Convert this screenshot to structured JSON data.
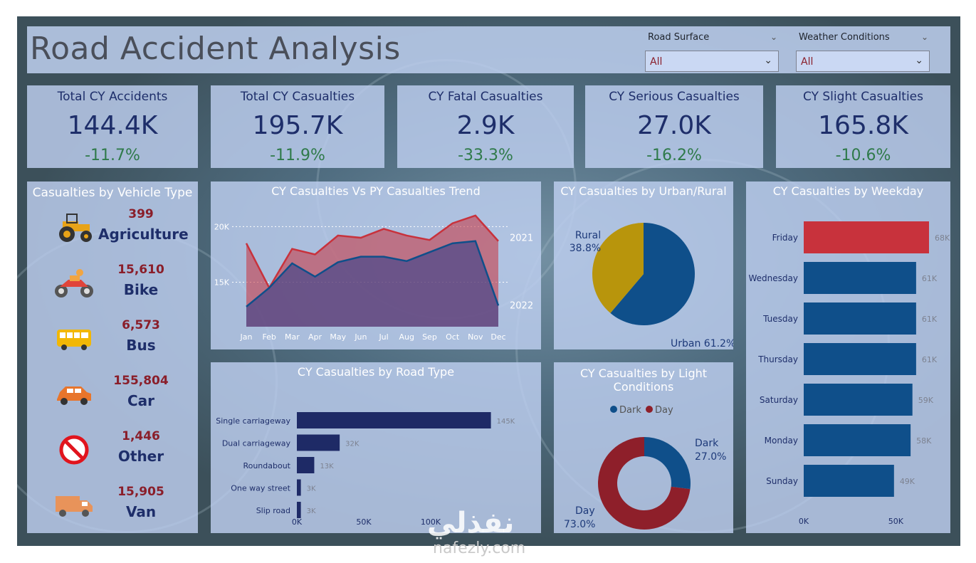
{
  "title": "Road Accident Analysis",
  "filters": [
    {
      "label": "Road Surface",
      "value": "All"
    },
    {
      "label": "Weather Conditions",
      "value": "All"
    }
  ],
  "kpis": [
    {
      "title": "Total CY Accidents",
      "value": "144.4K",
      "change": "-11.7%"
    },
    {
      "title": "Total CY Casualties",
      "value": "195.7K",
      "change": "-11.9%"
    },
    {
      "title": "CY Fatal Casualties",
      "value": "2.9K",
      "change": "-33.3%"
    },
    {
      "title": "CY Serious Casualties",
      "value": "27.0K",
      "change": "-16.2%"
    },
    {
      "title": "CY Slight Casualties",
      "value": "165.8K",
      "change": "-10.6%"
    }
  ],
  "vehicle_panel": {
    "title": "Casualties by Vehicle Type",
    "items": [
      {
        "name": "Agriculture",
        "count": "399",
        "icon": "tractor-icon"
      },
      {
        "name": "Bike",
        "count": "15,610",
        "icon": "motorbike-icon"
      },
      {
        "name": "Bus",
        "count": "6,573",
        "icon": "bus-icon"
      },
      {
        "name": "Car",
        "count": "155,804",
        "icon": "car-icon"
      },
      {
        "name": "Other",
        "count": "1,446",
        "icon": "prohibited-icon"
      },
      {
        "name": "Van",
        "count": "15,905",
        "icon": "van-icon"
      }
    ]
  },
  "watermark": {
    "main": "نفذلي",
    "sub": "nafezly.com"
  },
  "colors": {
    "red": "#c8323c",
    "blue": "#0f4f8a",
    "navy": "#1e2a66",
    "olive": "#b8950c",
    "maroon": "#8e1f2a"
  },
  "chart_data": [
    {
      "type": "area",
      "title": "CY Casualties Vs PY Casualties Trend",
      "categories": [
        "Jan",
        "Feb",
        "Mar",
        "Apr",
        "May",
        "Jun",
        "Jul",
        "Aug",
        "Sep",
        "Oct",
        "Nov",
        "Dec"
      ],
      "yticks": [
        "15K",
        "20K"
      ],
      "ylim": [
        11000,
        21500
      ],
      "series": [
        {
          "name": "2021",
          "values": [
            18500,
            14500,
            18000,
            17500,
            19200,
            19000,
            19800,
            19200,
            18800,
            20300,
            21000,
            18700
          ]
        },
        {
          "name": "2022",
          "values": [
            12800,
            14500,
            16700,
            15500,
            16800,
            17300,
            17300,
            16900,
            17700,
            18500,
            18700,
            12900
          ]
        }
      ]
    },
    {
      "type": "pie",
      "title": "CY Casualties by Urban/Rural",
      "labels": [
        "Urban",
        "Rural"
      ],
      "values": [
        61.2,
        38.8
      ],
      "value_labels": [
        "61.2%",
        "38.8%"
      ]
    },
    {
      "type": "bar",
      "title": "CY Casualties by Road Type",
      "categories": [
        "Single carriageway",
        "Dual carriageway",
        "Roundabout",
        "One way street",
        "Slip road"
      ],
      "values": [
        145,
        32,
        13,
        3,
        3
      ],
      "value_labels": [
        "145K",
        "32K",
        "13K",
        "3K",
        "3K"
      ],
      "xticks": [
        "0K",
        "50K",
        "100K"
      ],
      "xlim": [
        0,
        150
      ]
    },
    {
      "type": "pie",
      "title": "CY Casualties by Light Conditions",
      "legend": [
        "Dark",
        "Day"
      ],
      "labels": [
        "Dark",
        "Day"
      ],
      "values": [
        27.0,
        73.0
      ],
      "value_labels": [
        "27.0%",
        "73.0%"
      ]
    },
    {
      "type": "bar",
      "title": "CY Casualties by Weekday",
      "categories": [
        "Friday",
        "Wednesday",
        "Tuesday",
        "Thursday",
        "Saturday",
        "Monday",
        "Sunday"
      ],
      "values": [
        68,
        61,
        61,
        61,
        59,
        58,
        49
      ],
      "value_labels": [
        "68K",
        "61K",
        "61K",
        "61K",
        "59K",
        "58K",
        "49K"
      ],
      "xticks": [
        "0K",
        "50K"
      ],
      "xlim": [
        0,
        68
      ]
    }
  ]
}
